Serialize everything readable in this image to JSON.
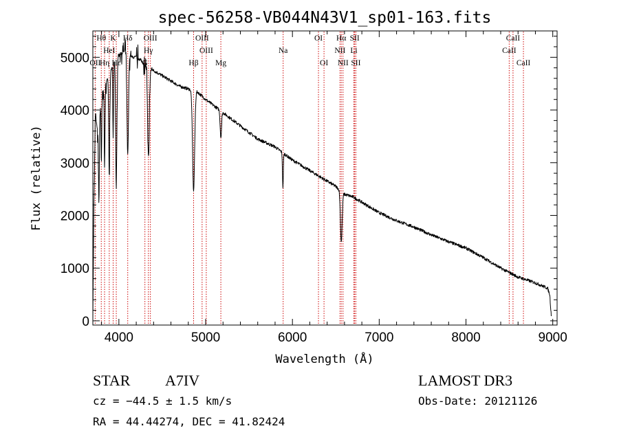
{
  "chart_data": {
    "type": "line",
    "title": "spec-56258-VB044N43V1_sp01-163.fits",
    "xlabel": "Wavelength (Å)",
    "ylabel": "Flux (relative)",
    "xlim": [
      3700,
      9050
    ],
    "ylim": [
      -80,
      5500
    ],
    "x_ticks": [
      4000,
      5000,
      6000,
      7000,
      8000,
      9000
    ],
    "x_tick_labels": [
      "4000",
      "5000",
      "6000",
      "7000",
      "8000",
      "9000"
    ],
    "y_ticks": [
      0,
      1000,
      2000,
      3000,
      4000,
      5000
    ],
    "y_tick_labels": [
      "0",
      "1000",
      "2000",
      "3000",
      "4000",
      "5000"
    ],
    "grid": false,
    "series": [
      {
        "name": "spectrum",
        "color": "#000000",
        "continuum": [
          [
            3700,
            150
          ],
          [
            3712,
            2200
          ],
          [
            3730,
            3950
          ],
          [
            3760,
            3500
          ],
          [
            3800,
            4300
          ],
          [
            3850,
            4500
          ],
          [
            3900,
            4700
          ],
          [
            3950,
            4950
          ],
          [
            4000,
            5050
          ],
          [
            4050,
            5100
          ],
          [
            4100,
            5150
          ],
          [
            4150,
            5000
          ],
          [
            4200,
            5000
          ],
          [
            4250,
            4950
          ],
          [
            4300,
            4850
          ],
          [
            4400,
            4750
          ],
          [
            4500,
            4650
          ],
          [
            4600,
            4550
          ],
          [
            4700,
            4450
          ],
          [
            4800,
            4400
          ],
          [
            4900,
            4350
          ],
          [
            5000,
            4200
          ],
          [
            5200,
            3950
          ],
          [
            5400,
            3700
          ],
          [
            5600,
            3450
          ],
          [
            5800,
            3300
          ],
          [
            6000,
            3050
          ],
          [
            6200,
            2850
          ],
          [
            6400,
            2650
          ],
          [
            6500,
            2550
          ],
          [
            6600,
            2400
          ],
          [
            6700,
            2350
          ],
          [
            6800,
            2250
          ],
          [
            7000,
            2050
          ],
          [
            7200,
            1900
          ],
          [
            7400,
            1780
          ],
          [
            7600,
            1630
          ],
          [
            7800,
            1500
          ],
          [
            8000,
            1380
          ],
          [
            8200,
            1200
          ],
          [
            8400,
            1000
          ],
          [
            8600,
            830
          ],
          [
            8800,
            720
          ],
          [
            8940,
            620
          ],
          [
            8965,
            500
          ],
          [
            8985,
            50
          ]
        ],
        "absorption": [
          {
            "center": 3770,
            "depth": 1500,
            "width": 4
          },
          {
            "center": 3798,
            "depth": 1300,
            "width": 4
          },
          {
            "center": 3835,
            "depth": 1500,
            "width": 5
          },
          {
            "center": 3889,
            "depth": 1900,
            "width": 6
          },
          {
            "center": 3934,
            "depth": 1400,
            "width": 4
          },
          {
            "center": 3970,
            "depth": 2500,
            "width": 7
          },
          {
            "center": 4102,
            "depth": 2000,
            "width": 9
          },
          {
            "center": 4341,
            "depth": 1700,
            "width": 10
          },
          {
            "center": 4861,
            "depth": 1900,
            "width": 12
          },
          {
            "center": 5175,
            "depth": 500,
            "width": 8
          },
          {
            "center": 5890,
            "depth": 650,
            "width": 5
          },
          {
            "center": 6563,
            "depth": 950,
            "width": 10
          }
        ],
        "noise_amplitude": 30,
        "noise_seed": 7
      }
    ],
    "line_markers": [
      {
        "wl": 3727,
        "label": "OII",
        "row": 2
      },
      {
        "wl": 3797,
        "label": "Hθ",
        "row": 0
      },
      {
        "wl": 3835,
        "label": "Hη",
        "row": 2
      },
      {
        "wl": 3889,
        "label": "HeI",
        "row": 1
      },
      {
        "wl": 3934,
        "label": "K",
        "row": 0
      },
      {
        "wl": 3970,
        "label": "Hε",
        "row": 2
      },
      {
        "wl": 4102,
        "label": "Hδ",
        "row": 0
      },
      {
        "wl": 4300,
        "label": "G",
        "row": 2
      },
      {
        "wl": 4340,
        "label": "Hγ",
        "row": 1
      },
      {
        "wl": 4363,
        "label": "OIII",
        "row": 0
      },
      {
        "wl": 4861,
        "label": "Hβ",
        "row": 2
      },
      {
        "wl": 4959,
        "label": "OIII",
        "row": 0
      },
      {
        "wl": 5007,
        "label": "OIII",
        "row": 1
      },
      {
        "wl": 5175,
        "label": "Mg",
        "row": 2
      },
      {
        "wl": 5893,
        "label": "Na",
        "row": 1
      },
      {
        "wl": 6300,
        "label": "OI",
        "row": 0
      },
      {
        "wl": 6364,
        "label": "OI",
        "row": 2
      },
      {
        "wl": 6548,
        "label": "NII",
        "row": 1
      },
      {
        "wl": 6563,
        "label": "Hα",
        "row": 0
      },
      {
        "wl": 6583,
        "label": "NII",
        "row": 2
      },
      {
        "wl": 6708,
        "label": "Li",
        "row": 1
      },
      {
        "wl": 6717,
        "label": "SII",
        "row": 0
      },
      {
        "wl": 6731,
        "label": "SII",
        "row": 2
      },
      {
        "wl": 8498,
        "label": "CaII",
        "row": 1
      },
      {
        "wl": 8542,
        "label": "CaII",
        "row": 0
      },
      {
        "wl": 8662,
        "label": "CaII",
        "row": 2
      }
    ],
    "marker_color": "#cc0000"
  },
  "info": {
    "object_class": "STAR",
    "subclass": "A7IV",
    "survey": "LAMOST DR3",
    "redshift": "cz = −44.5 ± 1.5 km/s",
    "obs_date": "Obs-Date: 20121126",
    "coords": "RA =  44.44274, DEC =  41.82424"
  }
}
